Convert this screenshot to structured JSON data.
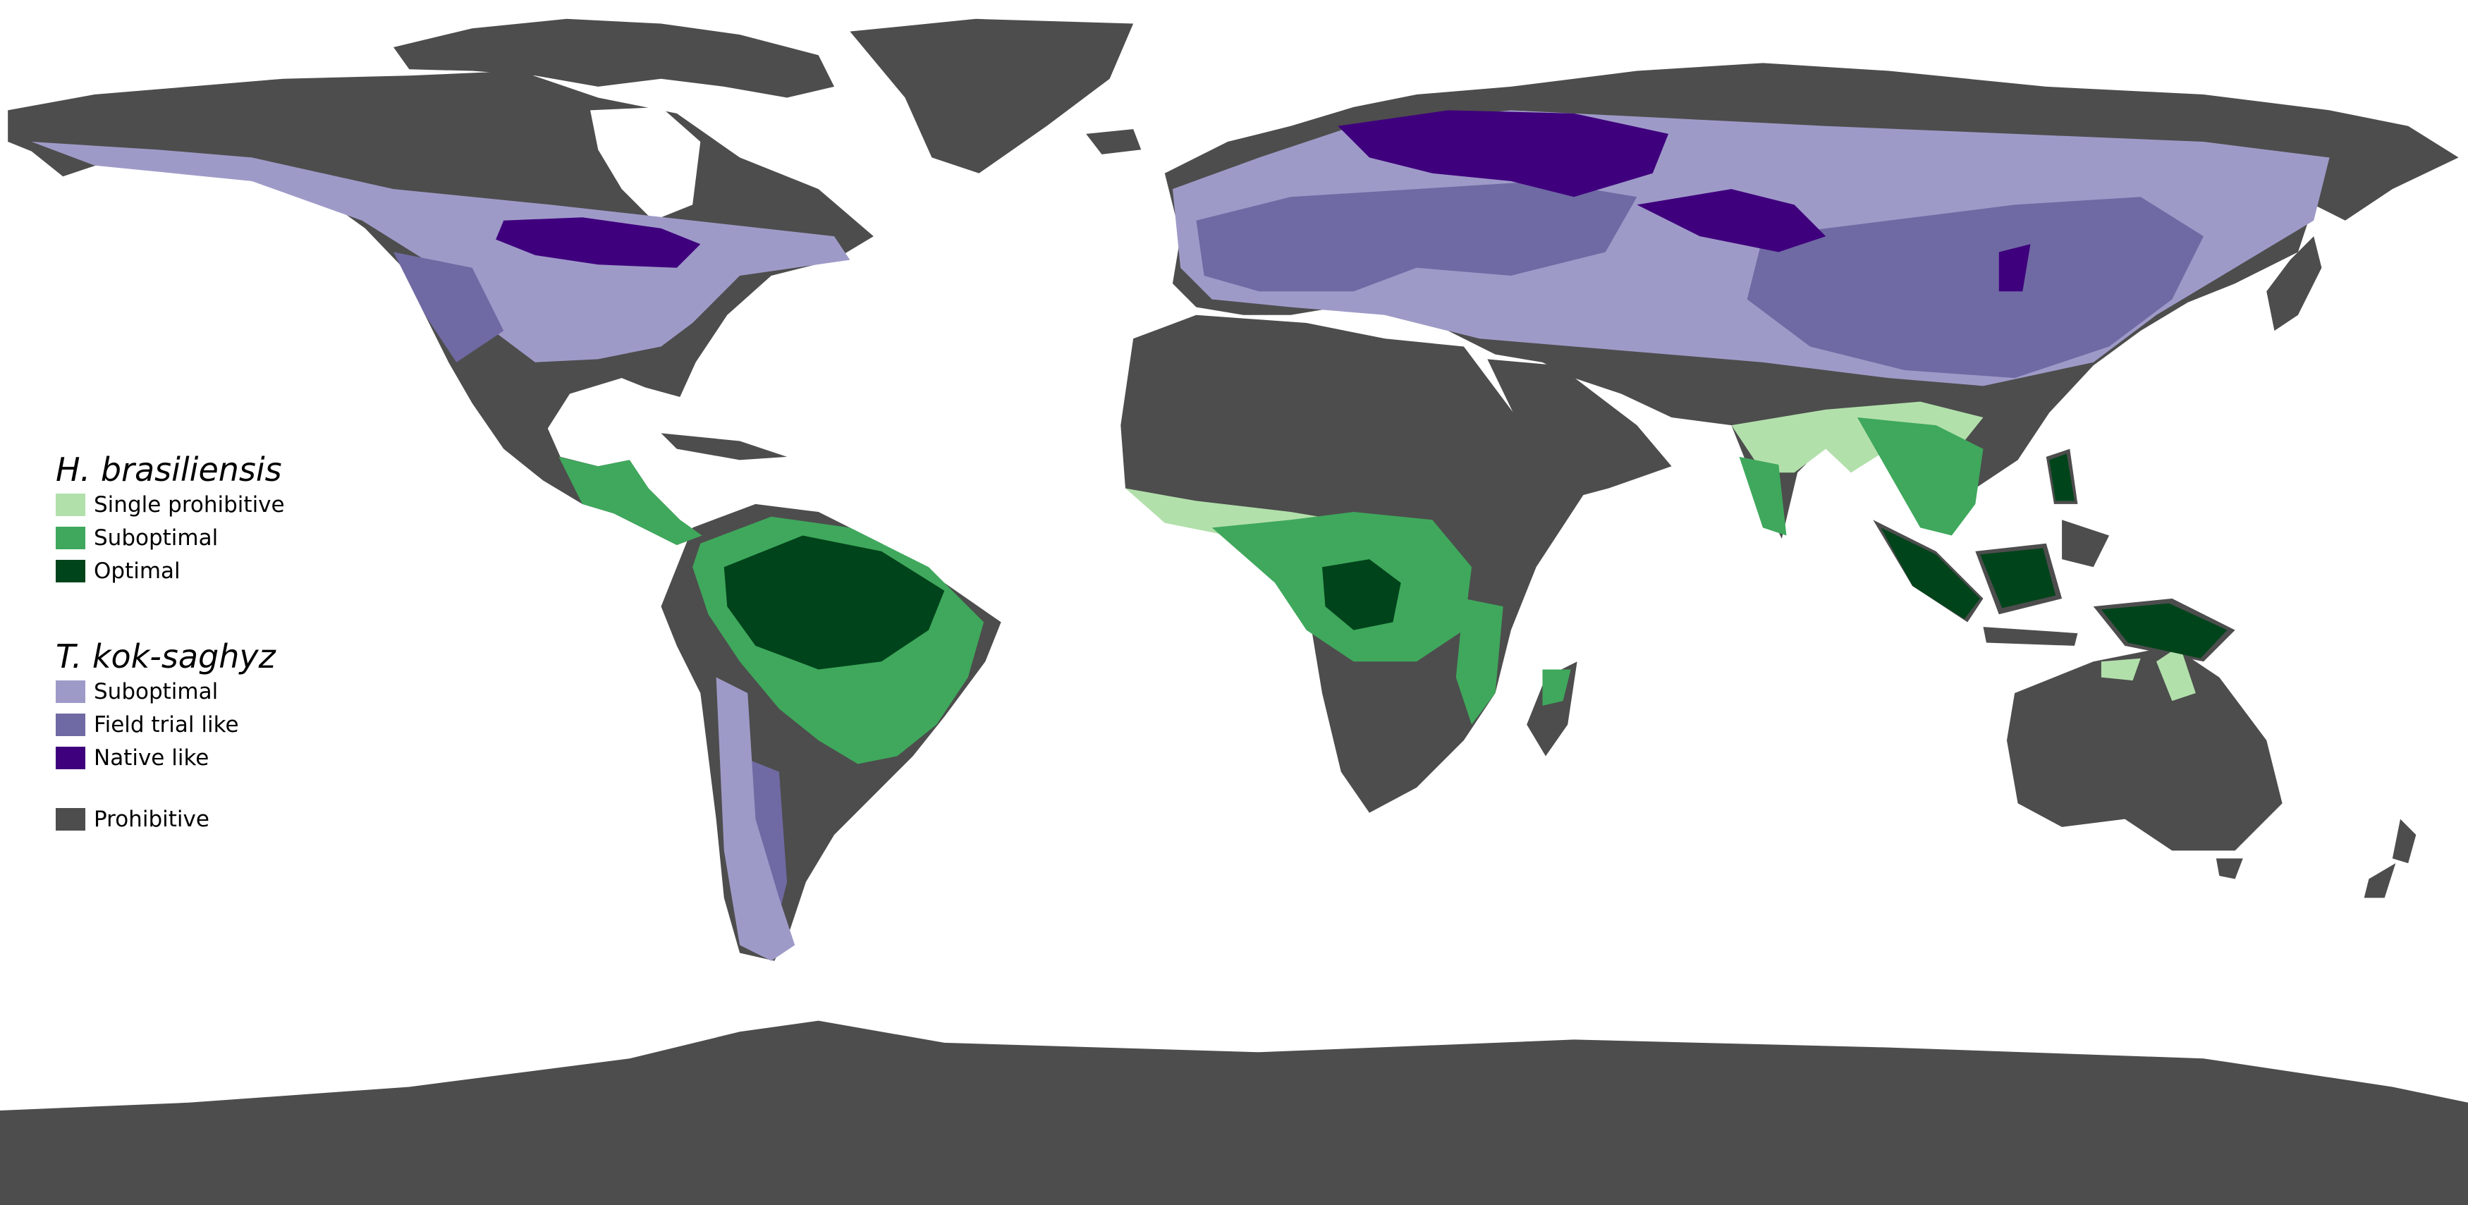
{
  "legend": {
    "hevea": {
      "title": "H. brasiliensis",
      "items": [
        {
          "label": "Single prohibitive",
          "color": "#b2e0ab"
        },
        {
          "label": "Suboptimal",
          "color": "#3fa85c"
        },
        {
          "label": "Optimal",
          "color": "#00441b"
        }
      ]
    },
    "tks": {
      "title": "T. kok-saghyz",
      "items": [
        {
          "label": "Suboptimal",
          "color": "#9e9ac8"
        },
        {
          "label": "Field trial like",
          "color": "#6f6aa3"
        },
        {
          "label": "Native like",
          "color": "#3f007d"
        }
      ]
    },
    "prohibitive": {
      "label": "Prohibitive",
      "color": "#4d4d4d"
    }
  },
  "map": {
    "projection": "equirectangular world map",
    "background": "#ffffff"
  }
}
